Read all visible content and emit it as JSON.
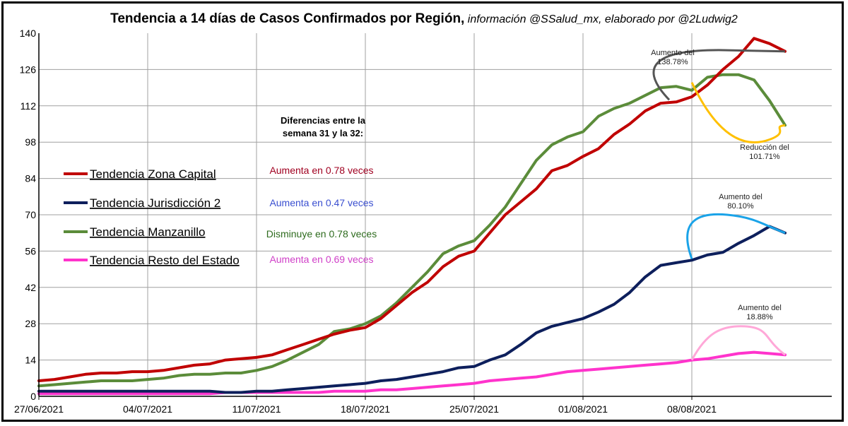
{
  "title": {
    "main": "Tendencia a 14 días de Casos Confirmados por Región,",
    "sub": " información @SSalud_mx, elaborado por @2Ludwig2"
  },
  "colors": {
    "zona_capital": "#c00000",
    "jurisdiccion2": "#0d1f5c",
    "manzanillo": "#5b8c3a",
    "resto": "#ff33cc",
    "ann_capital": "#555555",
    "ann_manzanillo": "#ffc000",
    "ann_jurisdiccion2": "#1aa3e8",
    "ann_resto": "#ffa8d8",
    "diff_capital": "#a00020",
    "diff_jurisdiccion2": "#3a4fd0",
    "diff_manzanillo": "#2e6b1e",
    "diff_resto": "#d040c8"
  },
  "differences": {
    "title_line1": "Diferencias entre la",
    "title_line2": "semana 31 y la 32:",
    "items": [
      {
        "text": "Aumenta en 0.78 veces",
        "color_key": "diff_capital"
      },
      {
        "text": "Aumenta en 0.47 veces",
        "color_key": "diff_jurisdiccion2"
      },
      {
        "text": "Disminuye en 0.78 veces",
        "color_key": "diff_manzanillo"
      },
      {
        "text": "Aumenta en 0.69 veces",
        "color_key": "diff_resto"
      }
    ]
  },
  "annotations": [
    {
      "line1": "Aumento del",
      "line2": "138.78%",
      "color_key": "ann_capital"
    },
    {
      "line1": "Reducción del",
      "line2": "101.71%",
      "color_key": "ann_manzanillo"
    },
    {
      "line1": "Aumento del",
      "line2": "80.10%",
      "color_key": "ann_jurisdiccion2"
    },
    {
      "line1": "Aumento del",
      "line2": "18.88%",
      "color_key": "ann_resto"
    }
  ],
  "chart_data": {
    "type": "line",
    "title": "Tendencia a 14 días de Casos Confirmados por Región, información @SSalud_mx, elaborado por @2Ludwig2",
    "xlabel": "",
    "ylabel": "",
    "ylim": [
      0,
      140
    ],
    "yticks": [
      0,
      14,
      28,
      42,
      56,
      70,
      84,
      98,
      112,
      126,
      140
    ],
    "x_day_index_range": [
      0,
      51
    ],
    "x_tick_labels": [
      "27/06/2021",
      "04/07/2021",
      "11/07/2021",
      "18/07/2021",
      "25/07/2021",
      "01/08/2021",
      "08/08/2021"
    ],
    "x_tick_day_index": [
      0,
      7,
      14,
      21,
      28,
      35,
      42
    ],
    "grid": true,
    "legend_position": "left",
    "series": [
      {
        "name": "Tendencia Zona Capital",
        "color_key": "zona_capital",
        "x": [
          0,
          1,
          2,
          3,
          4,
          5,
          6,
          7,
          8,
          9,
          10,
          11,
          12,
          13,
          14,
          15,
          16,
          17,
          18,
          19,
          20,
          21,
          22,
          23,
          24,
          25,
          26,
          27,
          28,
          29,
          30,
          31,
          32,
          33,
          34,
          35,
          36,
          37,
          38,
          39,
          40,
          41,
          42,
          43,
          44,
          45,
          46,
          47,
          48
        ],
        "values": [
          6,
          6.5,
          7.5,
          8.5,
          9,
          9,
          9.5,
          9.5,
          10,
          11,
          12,
          12.5,
          14,
          14.5,
          15,
          16,
          18,
          20,
          22,
          24,
          25.5,
          26.5,
          30,
          35,
          40,
          44,
          50,
          54,
          56,
          63,
          70,
          75,
          80,
          87,
          89,
          92.5,
          95.5,
          101,
          105,
          110,
          113,
          113.5,
          115.5,
          120,
          126,
          131,
          138,
          136,
          133
        ]
      },
      {
        "name": "Tendencia Jurisdicción 2",
        "color_key": "jurisdiccion2",
        "x": [
          0,
          1,
          2,
          3,
          4,
          5,
          6,
          7,
          8,
          9,
          10,
          11,
          12,
          13,
          14,
          15,
          16,
          17,
          18,
          19,
          20,
          21,
          22,
          23,
          24,
          25,
          26,
          27,
          28,
          29,
          30,
          31,
          32,
          33,
          34,
          35,
          36,
          37,
          38,
          39,
          40,
          41,
          42,
          43,
          44,
          45,
          46,
          47,
          48
        ],
        "values": [
          2,
          2,
          2,
          2,
          2,
          2,
          2,
          2,
          2,
          2,
          2,
          2,
          1.5,
          1.5,
          2,
          2,
          2.5,
          3,
          3.5,
          4,
          4.5,
          5,
          6,
          6.5,
          7.5,
          8.5,
          9.5,
          11,
          11.5,
          14,
          16,
          20,
          24.5,
          27,
          28.5,
          30,
          32.5,
          35.5,
          40,
          46,
          50.5,
          51.5,
          52.5,
          54.5,
          55.5,
          59,
          62,
          65.5,
          63
        ]
      },
      {
        "name": "Tendencia Manzanillo",
        "color_key": "manzanillo",
        "x": [
          0,
          1,
          2,
          3,
          4,
          5,
          6,
          7,
          8,
          9,
          10,
          11,
          12,
          13,
          14,
          15,
          16,
          17,
          18,
          19,
          20,
          21,
          22,
          23,
          24,
          25,
          26,
          27,
          28,
          29,
          30,
          31,
          32,
          33,
          34,
          35,
          36,
          37,
          38,
          39,
          40,
          41,
          42,
          43,
          44,
          45,
          46,
          47,
          48
        ],
        "values": [
          4,
          4.5,
          5,
          5.5,
          6,
          6,
          6,
          6.5,
          7,
          8,
          8.5,
          8.5,
          9,
          9,
          10,
          11.5,
          14,
          17,
          20,
          25,
          26,
          28,
          31,
          36,
          42,
          48,
          55,
          58,
          60,
          66,
          73,
          82,
          91,
          97,
          100,
          102,
          108,
          111,
          113,
          116,
          119,
          119.5,
          118,
          123,
          124,
          124,
          122,
          114,
          104.5
        ]
      },
      {
        "name": "Tendencia Resto del Estado",
        "color_key": "resto",
        "x": [
          0,
          1,
          2,
          3,
          4,
          5,
          6,
          7,
          8,
          9,
          10,
          11,
          12,
          13,
          14,
          15,
          16,
          17,
          18,
          19,
          20,
          21,
          22,
          23,
          24,
          25,
          26,
          27,
          28,
          29,
          30,
          31,
          32,
          33,
          34,
          35,
          36,
          37,
          38,
          39,
          40,
          41,
          42,
          43,
          44,
          45,
          46,
          47,
          48
        ],
        "values": [
          1,
          1,
          1,
          1,
          1,
          1,
          1,
          1,
          1,
          1,
          1,
          1,
          1.5,
          1.5,
          1.5,
          1.5,
          1.5,
          1.5,
          1.5,
          2,
          2,
          2,
          2.5,
          2.5,
          3,
          3.5,
          4,
          4.5,
          5,
          6,
          6.5,
          7,
          7.5,
          8.5,
          9.5,
          10,
          10.5,
          11,
          11.5,
          12,
          12.5,
          13,
          14,
          14.5,
          15.5,
          16.5,
          17,
          16.5,
          16
        ]
      }
    ]
  }
}
